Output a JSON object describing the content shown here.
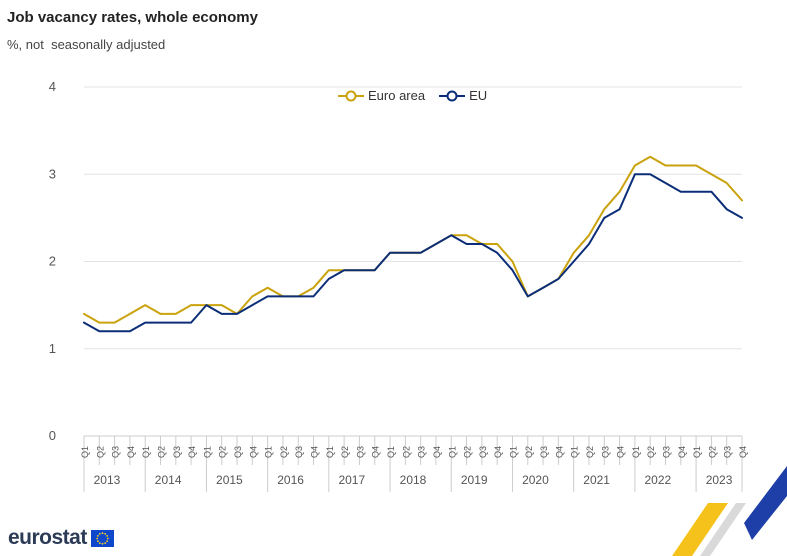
{
  "header": {
    "title": "Job vacancy rates, whole economy",
    "subtitle": "%, not  seasonally adjusted"
  },
  "footer": {
    "logo_text": "eurostat"
  },
  "colors": {
    "euro_area": "#c9a20c",
    "eu": "#0c2e78",
    "grid": "#e3e3e3",
    "axis_text": "#555555",
    "accent_yellow": "#f5c21b",
    "accent_blue": "#1f3fa8"
  },
  "icons": {
    "logo_flag": "eu-flag-icon",
    "legend_marker": "circle-marker-icon",
    "corner_decoration": "eurostat-ribbon-graphic"
  },
  "chart_data": {
    "type": "line",
    "title": "Job vacancy rates, whole economy",
    "subtitle": "%, not  seasonally adjusted",
    "ylim": [
      0,
      4
    ],
    "yticks": [
      0,
      1,
      2,
      3,
      4
    ],
    "quarter_labels": [
      "Q1",
      "Q2",
      "Q3",
      "Q4"
    ],
    "years": [
      "2013",
      "2014",
      "2015",
      "2016",
      "2017",
      "2018",
      "2019",
      "2020",
      "2021",
      "2022",
      "2023"
    ],
    "legend_position": "top-center",
    "grid": true,
    "series": [
      {
        "name": "Euro area",
        "values": [
          1.4,
          1.3,
          1.3,
          1.4,
          1.5,
          1.4,
          1.4,
          1.5,
          1.5,
          1.5,
          1.4,
          1.6,
          1.7,
          1.6,
          1.6,
          1.7,
          1.9,
          1.9,
          1.9,
          1.9,
          2.1,
          2.1,
          2.1,
          2.2,
          2.3,
          2.3,
          2.2,
          2.2,
          2.0,
          1.6,
          1.7,
          1.8,
          2.1,
          2.3,
          2.6,
          2.8,
          3.1,
          3.2,
          3.1,
          3.1,
          3.1,
          3.0,
          2.9,
          2.7
        ]
      },
      {
        "name": "EU",
        "values": [
          1.3,
          1.2,
          1.2,
          1.2,
          1.3,
          1.3,
          1.3,
          1.3,
          1.5,
          1.4,
          1.4,
          1.5,
          1.6,
          1.6,
          1.6,
          1.6,
          1.8,
          1.9,
          1.9,
          1.9,
          2.1,
          2.1,
          2.1,
          2.2,
          2.3,
          2.2,
          2.2,
          2.1,
          1.9,
          1.6,
          1.7,
          1.8,
          2.0,
          2.2,
          2.5,
          2.6,
          3.0,
          3.0,
          2.9,
          2.8,
          2.8,
          2.8,
          2.6,
          2.5
        ]
      }
    ]
  }
}
